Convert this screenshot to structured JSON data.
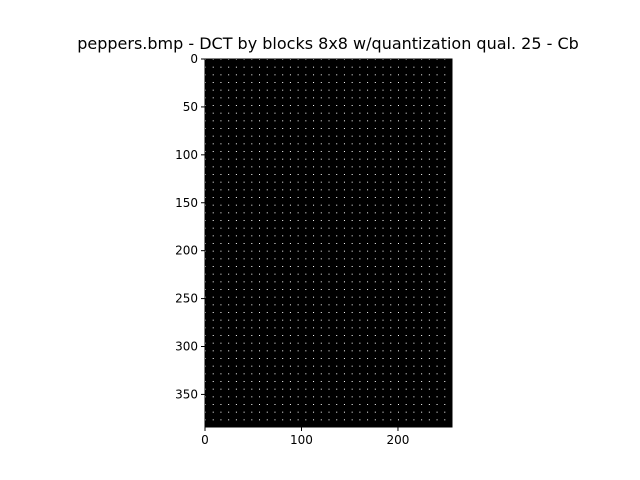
{
  "figure": {
    "title": "peppers.bmp - DCT by blocks 8x8  w/quantization qual. 25 - Cb",
    "background_color": "#ffffff",
    "axes_color": "#000000"
  },
  "image_plot": {
    "image_width": 256,
    "image_height": 384,
    "block_size": 8,
    "dc_dot_color": "#ffffff",
    "background": "#000000",
    "x_axis": {
      "ticks": [
        0,
        100,
        200
      ],
      "labels": [
        "0",
        "100",
        "200"
      ]
    },
    "y_axis": {
      "ticks": [
        0,
        50,
        100,
        150,
        200,
        250,
        300,
        350
      ],
      "labels": [
        "0",
        "50",
        "100",
        "150",
        "200",
        "250",
        "300",
        "350"
      ]
    }
  }
}
